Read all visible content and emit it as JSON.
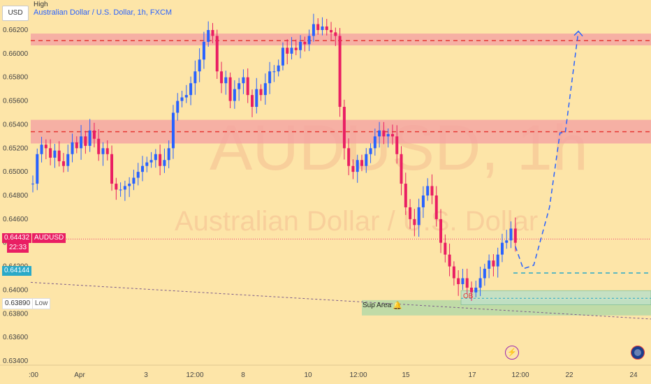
{
  "currency": "USD",
  "title": "Australian Dollar / U.S. Dollar, 1h, FXCM",
  "ohlc_label": "High",
  "watermark": {
    "symbol": "AUDUSD, 1h",
    "name": "Australian Dollar / U.S. Dollar"
  },
  "tags": {
    "price": "0.64432",
    "symbol": "AUDUSD",
    "countdown": "22:33",
    "level": "0.64144",
    "low_value": "0.63890",
    "low_label": "Low"
  },
  "annotations": {
    "support": "Sup Area",
    "order_block": "OB"
  },
  "icons": {
    "alert": "bell-icon",
    "event": "flash-icon",
    "country": "australia-flag-icon"
  },
  "colors": {
    "background": "#fde5a8",
    "up": "#2962ff",
    "down": "#e91e63",
    "zone": "#f4a3a3",
    "support_zone": "#b9d9a6",
    "projection": "#2962ff"
  },
  "chart_data": {
    "type": "candlestick",
    "y_axis": {
      "ylim": [
        0.634,
        0.6632
      ],
      "ticks": [
        "0.63400",
        "0.63600",
        "0.63800",
        "0.64000",
        "0.64200",
        "0.64400",
        "0.64600",
        "0.64800",
        "0.65000",
        "0.65200",
        "0.65400",
        "0.65600",
        "0.65800",
        "0.66000",
        "0.66200"
      ]
    },
    "x_axis": {
      "ticks": [
        ":00",
        "Apr",
        "3",
        "12:00",
        "8",
        "10",
        "12:00",
        "15",
        "17",
        "12:00",
        "22",
        "24"
      ]
    },
    "series": [
      {
        "values": [
          0.649,
          0.6515,
          0.6523,
          0.652,
          0.6512,
          0.6518,
          0.6509,
          0.6505,
          0.6515,
          0.6525,
          0.652,
          0.653,
          0.6522,
          0.6535,
          0.6528,
          0.6515,
          0.652,
          0.6515,
          0.649,
          0.6485,
          0.6485,
          0.6488,
          0.649,
          0.6495,
          0.65,
          0.6505,
          0.6508,
          0.651,
          0.6515,
          0.6505,
          0.651,
          0.652,
          0.655,
          0.656,
          0.6563,
          0.6565,
          0.6575,
          0.6585,
          0.6595,
          0.661,
          0.662,
          0.6615,
          0.6585,
          0.6575,
          0.658,
          0.656,
          0.657,
          0.6575,
          0.658,
          0.6565,
          0.6555,
          0.657,
          0.6565,
          0.6575,
          0.6585,
          0.6585,
          0.659,
          0.6605,
          0.66,
          0.6605,
          0.6603,
          0.661,
          0.6608,
          0.6615,
          0.6625,
          0.662,
          0.6623,
          0.662,
          0.6618,
          0.6615,
          0.6555,
          0.652,
          0.6505,
          0.65,
          0.651,
          0.6505,
          0.6515,
          0.652,
          0.653,
          0.6535,
          0.653,
          0.6532,
          0.653,
          0.6515,
          0.649,
          0.647,
          0.646,
          0.6455,
          0.647,
          0.648,
          0.6488,
          0.648,
          0.646,
          0.644,
          0.643,
          0.642,
          0.641,
          0.6405,
          0.641,
          0.6402,
          0.6398,
          0.6402,
          0.641,
          0.6418,
          0.6425,
          0.642,
          0.643,
          0.644,
          0.6442,
          0.6452,
          0.644
        ]
      }
    ],
    "resistance_zones": [
      [
        0.6607,
        0.6617
      ],
      [
        0.6524,
        0.6544
      ]
    ],
    "resistance_levels": [
      0.6611,
      0.6534
    ],
    "support_zone": [
      0.63785,
      0.63915
    ],
    "order_block_zone": [
      0.63875,
      0.63995
    ],
    "current_price": 0.64432,
    "dashed_level": 0.64144,
    "projection_path": [
      [
        0.6437,
        0
      ],
      [
        0.6418,
        6
      ],
      [
        0.6421,
        14
      ],
      [
        0.647,
        26
      ],
      [
        0.6533,
        34
      ],
      [
        0.6533,
        38
      ],
      [
        0.6619,
        48
      ]
    ]
  }
}
